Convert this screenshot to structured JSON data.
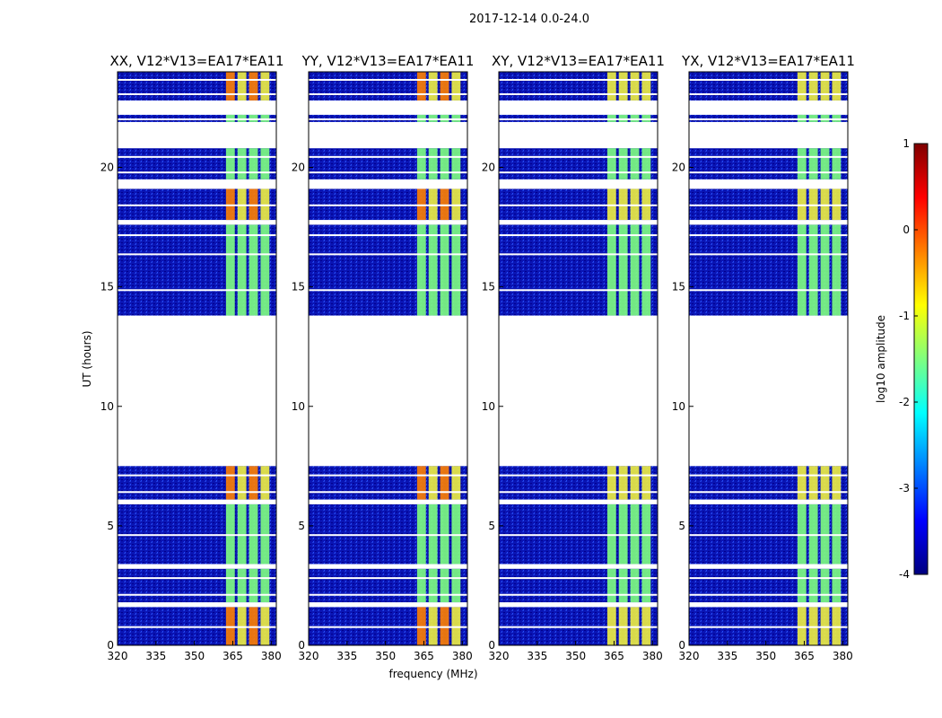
{
  "figure": {
    "title": "2017-12-14 0.0-24.0"
  },
  "chart_data": {
    "type": "heatmap",
    "panels": [
      {
        "title": "XX, V12*V13=EA17*EA11"
      },
      {
        "title": "YY, V12*V13=EA17*EA11"
      },
      {
        "title": "XY, V12*V13=EA17*EA11"
      },
      {
        "title": "YX, V12*V13=EA17*EA11"
      }
    ],
    "xlabel": "frequency (MHz)",
    "ylabel": "UT (hours)",
    "xlim": [
      320,
      382
    ],
    "ylim": [
      0,
      24
    ],
    "xticks": [
      320,
      335,
      350,
      365,
      380
    ],
    "yticks": [
      0,
      5,
      10,
      15,
      20
    ],
    "colorbar": {
      "label": "log10 amplitude",
      "min": -4,
      "max": 1,
      "ticks": [
        1,
        0,
        -1,
        -2,
        -3,
        -4
      ],
      "colormap": "jet"
    },
    "bright_band_MHz": [
      362,
      380
    ],
    "data_blocks_hours": [
      [
        0,
        1.6
      ],
      [
        1.8,
        3.2
      ],
      [
        3.4,
        5.9
      ],
      [
        6.1,
        7.5
      ],
      [
        13.8,
        16.0
      ],
      [
        16.0,
        17.6
      ],
      [
        17.8,
        19.1
      ],
      [
        19.5,
        20.8
      ],
      [
        21.9,
        22.2
      ],
      [
        22.8,
        24.0
      ]
    ],
    "gap_hours": [
      7.5,
      13.7
    ]
  },
  "colors": {
    "background_low": "#00008f",
    "band_high": "#7fff7f",
    "band_peak": "#ff8000"
  }
}
